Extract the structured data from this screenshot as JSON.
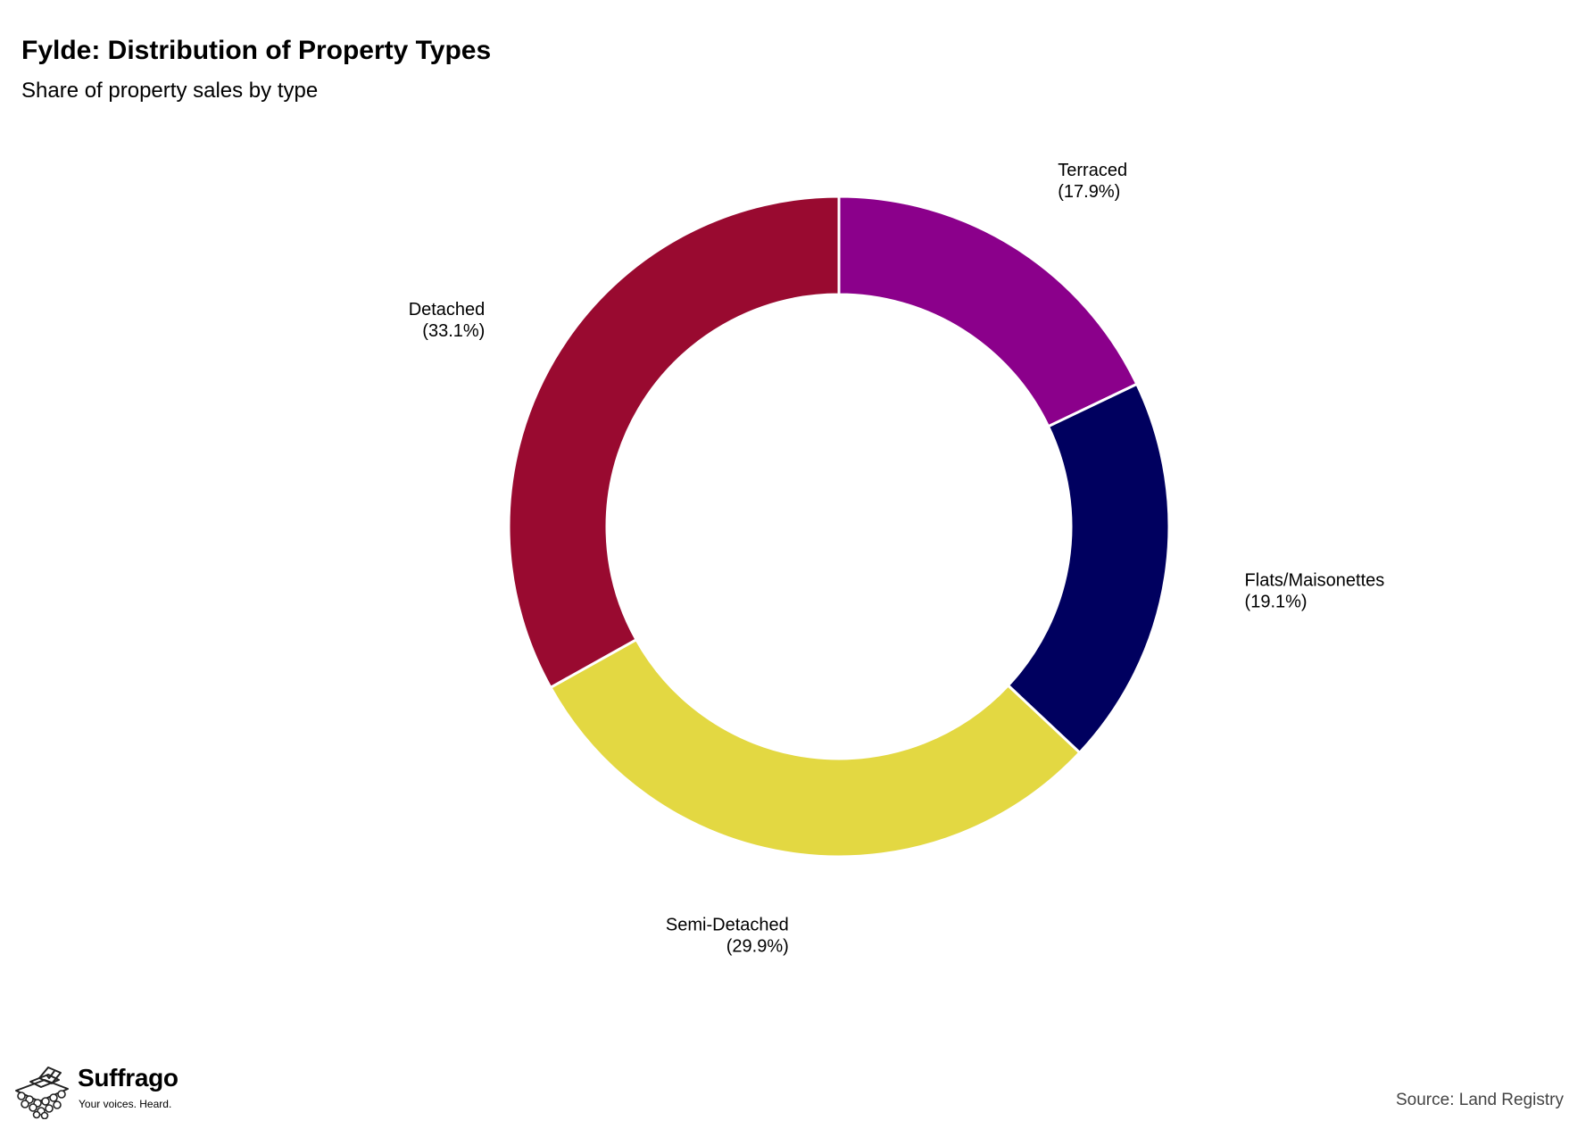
{
  "header": {
    "title": "Fylde: Distribution of Property Types",
    "subtitle": "Share of property sales by type"
  },
  "chart_data": {
    "type": "pie",
    "style": "donut",
    "start": "top, clockwise",
    "slices": [
      {
        "name": "Terraced",
        "value": 17.9,
        "pct_label": "(17.9%)",
        "color": "#8B008B"
      },
      {
        "name": "Flats/Maisonettes",
        "value": 19.1,
        "pct_label": "(19.1%)",
        "color": "#00005F"
      },
      {
        "name": "Semi-Detached",
        "value": 29.9,
        "pct_label": "(29.9%)",
        "color": "#E3D842"
      },
      {
        "name": "Detached",
        "value": 33.1,
        "pct_label": "(33.1%)",
        "color": "#990A30"
      }
    ]
  },
  "footer": {
    "brand": "Suffrago",
    "tagline": "Your voices. Heard.",
    "source": "Source: Land Registry"
  }
}
